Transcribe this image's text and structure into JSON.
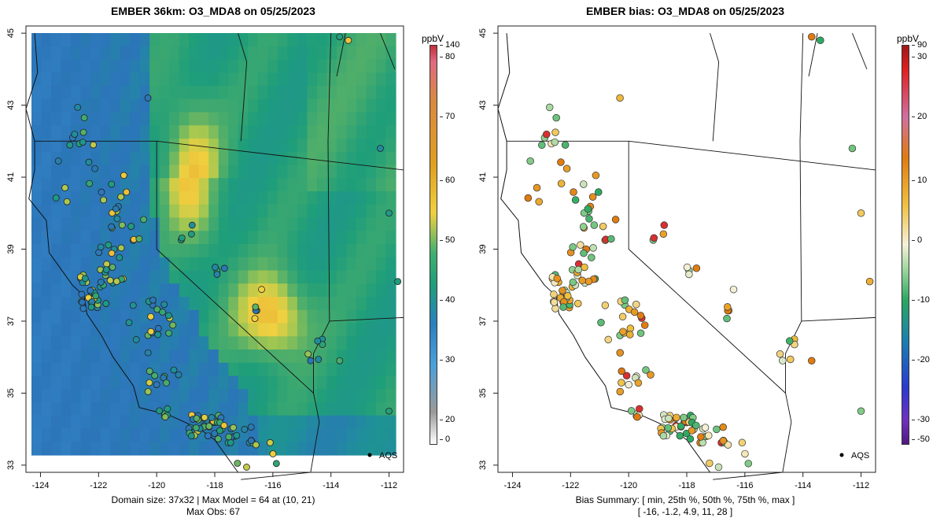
{
  "left": {
    "title": "EMBER 36km: O3_MDA8 on 05/25/2023",
    "footer_line1": "Domain size: 37x32 | Max Model = 64 at (10, 21)",
    "footer_line2": "Max Obs: 67",
    "colorbar_unit": "ppbV",
    "colorbar_ticks": [
      "140",
      "80",
      "70",
      "60",
      "50",
      "40",
      "30",
      "20",
      "0"
    ],
    "aqs_label": "AQS"
  },
  "right": {
    "title": "EMBER bias: O3_MDA8 on 05/25/2023",
    "footer_line1": "Bias Summary: [ min, 25th %, 50th %, 75th %, max ]",
    "footer_line2": "[ -16,  -1.2,  4.9,  11,  28 ]",
    "colorbar_unit": "ppbV",
    "colorbar_ticks": [
      "90",
      "30",
      "20",
      "10",
      "0",
      "-10",
      "-20",
      "-30",
      "-50"
    ],
    "aqs_label": "AQS"
  },
  "axes": {
    "x_ticks": [
      "-124",
      "-122",
      "-120",
      "-118",
      "-116",
      "-114",
      "-112"
    ],
    "y_ticks": [
      "33",
      "35",
      "37",
      "39",
      "41",
      "43",
      "45"
    ]
  },
  "colors": {
    "low": "#2b6cb8",
    "mid": "#1f9e7a",
    "high": "#f0d040",
    "peak": "#e08a20",
    "bias_pos": "#e07b10",
    "bias_neg": "#2aa860"
  }
}
